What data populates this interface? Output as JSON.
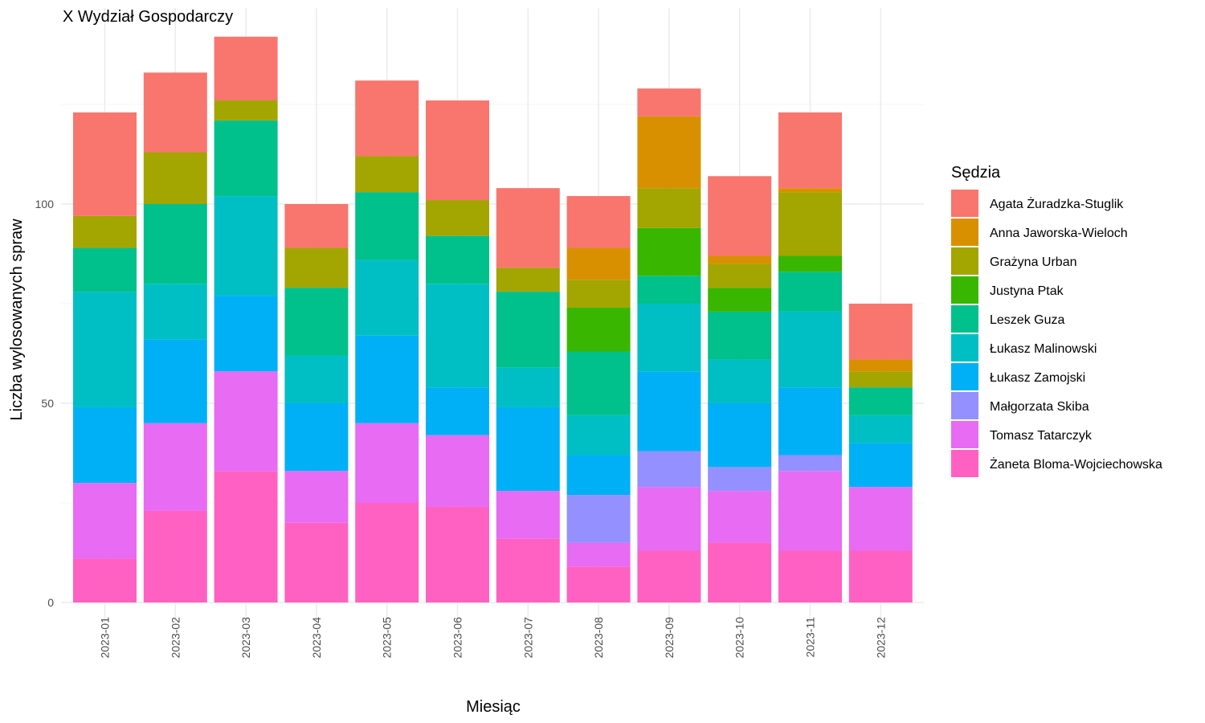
{
  "chart_data": {
    "type": "bar",
    "stacked": true,
    "title": "X Wydział Gospodarczy",
    "xlabel": "Miesiąc",
    "ylabel": "Liczba wylosowanych spraw",
    "ylim": [
      0,
      143
    ],
    "yticks": [
      0,
      50,
      100
    ],
    "legend_title": "Sędzia",
    "legend_position": "right",
    "grid": true,
    "categories": [
      "2023-01",
      "2023-02",
      "2023-03",
      "2023-04",
      "2023-05",
      "2023-06",
      "2023-07",
      "2023-08",
      "2023-09",
      "2023-10",
      "2023-11",
      "2023-12"
    ],
    "series": [
      {
        "name": "Żaneta Bloma-Wojciechowska",
        "color": "#FF61C3",
        "values": [
          11,
          23,
          33,
          20,
          25,
          24,
          16,
          9,
          13,
          15,
          13,
          13
        ]
      },
      {
        "name": "Tomasz Tatarczyk",
        "color": "#E76BF3",
        "values": [
          19,
          22,
          25,
          13,
          20,
          18,
          12,
          6,
          16,
          13,
          20,
          16
        ]
      },
      {
        "name": "Małgorzata Skiba",
        "color": "#9590FF",
        "values": [
          0,
          0,
          0,
          0,
          0,
          0,
          0,
          12,
          9,
          6,
          4,
          0
        ]
      },
      {
        "name": "Łukasz Zamojski",
        "color": "#00B0F6",
        "values": [
          19,
          21,
          19,
          17,
          22,
          12,
          21,
          10,
          20,
          16,
          17,
          11
        ]
      },
      {
        "name": "Łukasz Malinowski",
        "color": "#00BFC4",
        "values": [
          29,
          14,
          25,
          12,
          19,
          26,
          10,
          10,
          17,
          11,
          19,
          7
        ]
      },
      {
        "name": "Leszek Guza",
        "color": "#00C08B",
        "values": [
          11,
          20,
          19,
          17,
          17,
          12,
          19,
          16,
          7,
          12,
          10,
          7
        ]
      },
      {
        "name": "Justyna Ptak",
        "color": "#39B600",
        "values": [
          0,
          0,
          0,
          0,
          0,
          0,
          0,
          11,
          12,
          6,
          4,
          0
        ]
      },
      {
        "name": "Grażyna Urban",
        "color": "#A3A500",
        "values": [
          8,
          13,
          5,
          10,
          9,
          9,
          6,
          7,
          10,
          6,
          16,
          4
        ]
      },
      {
        "name": "Anna Jaworska-Wieloch",
        "color": "#D89000",
        "values": [
          0,
          0,
          0,
          0,
          0,
          0,
          0,
          8,
          18,
          2,
          1,
          3
        ]
      },
      {
        "name": "Agata Żuradzka-Stuglik",
        "color": "#F8766D",
        "values": [
          26,
          20,
          16,
          11,
          19,
          25,
          20,
          13,
          7,
          20,
          19,
          14
        ]
      }
    ],
    "legend_order": [
      "Agata Żuradzka-Stuglik",
      "Anna Jaworska-Wieloch",
      "Grażyna Urban",
      "Justyna Ptak",
      "Leszek Guza",
      "Łukasz Malinowski",
      "Łukasz Zamojski",
      "Małgorzata Skiba",
      "Tomasz Tatarczyk",
      "Żaneta Bloma-Wojciechowska"
    ]
  }
}
